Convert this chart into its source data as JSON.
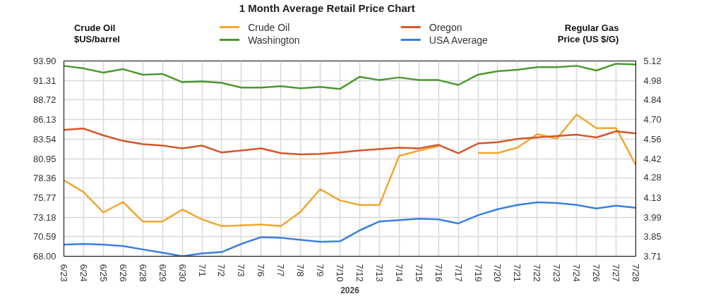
{
  "chart_data": {
    "type": "line",
    "title": "1 Month Average Retail Price Chart",
    "xlabel": "2026",
    "ylabel": "Crude Oil\n$US/barrel",
    "y2label": "Regular Gas\nPrice (US $/G)",
    "categories": [
      "6/23",
      "6/24",
      "6/25",
      "6/26",
      "6/28",
      "6/29",
      "6/30",
      "7/1",
      "7/2",
      "7/3",
      "7/6",
      "7/7",
      "7/8",
      "7/9",
      "7/10",
      "7/12",
      "7/13",
      "7/14",
      "7/15",
      "7/16",
      "7/17",
      "7/19",
      "7/20",
      "7/21",
      "7/22",
      "7/23",
      "7/24",
      "7/26",
      "7/27",
      "7/28"
    ],
    "series": [
      {
        "name": "Crude Oil",
        "color": "#f0a830",
        "values": [
          78.1,
          76.5,
          73.8,
          75.2,
          72.6,
          72.6,
          74.2,
          72.9,
          72.0,
          72.1,
          72.2,
          72.0,
          73.9,
          76.9,
          75.4,
          74.8,
          74.8,
          81.3,
          82.0,
          82.6,
          null,
          81.7,
          81.7,
          82.4,
          84.2,
          83.6,
          86.8,
          85.0,
          85.0,
          80.1
        ]
      },
      {
        "name": "Washington",
        "color": "#4a9a2e",
        "axis": "y2",
        "values": [
          5.085,
          5.066,
          5.036,
          5.061,
          5.021,
          5.026,
          4.967,
          4.972,
          4.962,
          4.928,
          4.928,
          4.938,
          4.923,
          4.933,
          4.918,
          5.006,
          4.982,
          5.001,
          4.982,
          4.982,
          4.947,
          5.021,
          5.046,
          5.056,
          5.076,
          5.076,
          5.085,
          5.051,
          5.1,
          5.095
        ]
      },
      {
        "name": "Oregon",
        "color": "#d4572a",
        "axis": "y2",
        "values": [
          4.622,
          4.632,
          4.583,
          4.543,
          4.519,
          4.509,
          4.489,
          4.509,
          4.459,
          4.474,
          4.489,
          4.454,
          4.445,
          4.449,
          4.459,
          4.474,
          4.484,
          4.494,
          4.489,
          4.514,
          4.454,
          4.524,
          4.533,
          4.558,
          4.568,
          4.578,
          4.588,
          4.568,
          4.612,
          4.597
        ]
      },
      {
        "name": "USA Average",
        "color": "#3b7fe0",
        "axis": "y2",
        "values": [
          3.794,
          3.799,
          3.794,
          3.784,
          3.759,
          3.735,
          3.71,
          3.73,
          3.74,
          3.799,
          3.848,
          3.843,
          3.828,
          3.814,
          3.818,
          3.897,
          3.961,
          3.971,
          3.981,
          3.976,
          3.947,
          4.006,
          4.05,
          4.08,
          4.099,
          4.094,
          4.08,
          4.055,
          4.075,
          4.06
        ]
      }
    ],
    "ylim": [
      68,
      93.9
    ],
    "yticks": [
      {
        "value": 68,
        "label": "68.00"
      },
      70.59,
      73.18,
      75.77,
      78.36,
      80.95,
      83.54,
      86.13,
      88.72,
      91.31,
      {
        "value": 93.9,
        "label": "93.90"
      }
    ],
    "y2lim": [
      3.71,
      5.12
    ],
    "y2ticks": [
      3.71,
      {
        "value": 3.851,
        "label": "3.85"
      },
      {
        "value": 3.992,
        "label": "3.99"
      },
      {
        "value": 4.133,
        "label": "4.13"
      },
      {
        "value": 4.278,
        "label": "4.28"
      },
      {
        "value": 4.415,
        "label": "4.42"
      },
      {
        "value": 4.556,
        "label": "4.56"
      },
      {
        "value": 4.697,
        "label": "4.70"
      },
      {
        "value": 4.838,
        "label": "4.84"
      },
      {
        "value": 4.979,
        "label": "4.98"
      },
      5.12
    ],
    "grid": true,
    "legend": "top",
    "line_style": "solid",
    "marker": "none"
  }
}
